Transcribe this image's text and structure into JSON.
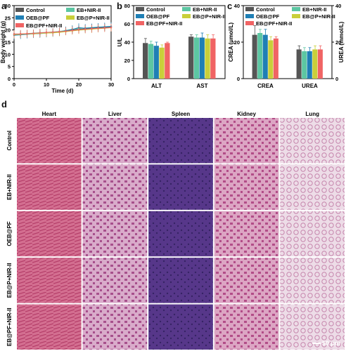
{
  "colors": {
    "Control": "#555555",
    "EB+NIR-II": "#5cc6a2",
    "OEB@PF": "#1f7fb5",
    "EB@P+NIR-II": "#c9cf3a",
    "EB@PF+NIR-II": "#f06464"
  },
  "panels": {
    "a": "a",
    "b": "b",
    "c": "c",
    "d": "d"
  },
  "chart_data": [
    {
      "id": "a",
      "type": "line",
      "xlabel": "Time (d)",
      "ylabel": "Body weight (g)",
      "xlim": [
        0,
        30
      ],
      "ylim": [
        0,
        30
      ],
      "xticks": [
        "0",
        "10",
        "20",
        "30"
      ],
      "yticks": [
        "0",
        "5",
        "10",
        "15",
        "20",
        "25",
        "30"
      ],
      "legend": "top",
      "series": [
        {
          "name": "Control",
          "x": [
            0,
            2,
            4,
            6,
            8,
            10,
            12,
            14,
            16,
            18,
            20,
            22,
            24,
            26,
            28,
            30
          ],
          "y": [
            18.0,
            18.2,
            18.4,
            18.5,
            18.7,
            18.8,
            19.0,
            19.2,
            19.6,
            20.0,
            20.3,
            20.5,
            20.7,
            20.9,
            21.0,
            21.2
          ],
          "err": 1.6
        },
        {
          "name": "EB+NIR-II",
          "x": [
            0,
            2,
            4,
            6,
            8,
            10,
            12,
            14,
            16,
            18,
            20,
            22,
            24,
            26,
            28,
            30
          ],
          "y": [
            18.4,
            18.3,
            18.5,
            18.7,
            18.9,
            19.0,
            19.2,
            19.4,
            19.8,
            20.3,
            20.6,
            20.8,
            21.0,
            21.2,
            21.3,
            21.4
          ],
          "err": 1.5
        },
        {
          "name": "OEB@PF",
          "x": [
            0,
            2,
            4,
            6,
            8,
            10,
            12,
            14,
            16,
            18,
            20,
            22,
            24,
            26,
            28,
            30
          ],
          "y": [
            17.8,
            18.0,
            18.2,
            18.4,
            18.5,
            18.7,
            18.9,
            19.2,
            19.7,
            20.2,
            21.0,
            20.7,
            20.9,
            21.1,
            21.3,
            21.5
          ],
          "err": 1.7
        },
        {
          "name": "EB@P+NIR-II",
          "x": [
            0,
            2,
            4,
            6,
            8,
            10,
            12,
            14,
            16,
            18,
            20,
            22,
            24,
            26,
            28,
            30
          ],
          "y": [
            18.1,
            18.2,
            18.4,
            18.4,
            18.6,
            18.7,
            18.8,
            19.0,
            19.3,
            19.6,
            19.9,
            20.1,
            20.3,
            20.5,
            20.7,
            20.9
          ],
          "err": 1.5
        },
        {
          "name": "EB@PF+NIR-II",
          "x": [
            0,
            2,
            4,
            6,
            8,
            10,
            12,
            14,
            16,
            18,
            20,
            22,
            24,
            26,
            28,
            30
          ],
          "y": [
            18.3,
            18.4,
            18.5,
            18.6,
            18.8,
            19.0,
            19.1,
            19.3,
            19.5,
            19.8,
            20.1,
            20.3,
            20.5,
            20.7,
            20.8,
            21.0
          ],
          "err": 1.6
        }
      ]
    },
    {
      "id": "b",
      "type": "bar",
      "ylabel": "U/L",
      "categories": [
        "ALT",
        "AST"
      ],
      "ylim": [
        0,
        80
      ],
      "yticks": [
        "0",
        "20",
        "40",
        "60",
        "80"
      ],
      "legend": "top",
      "series": [
        {
          "name": "Control",
          "values": [
            39,
            46
          ],
          "err": [
            5,
            2
          ]
        },
        {
          "name": "EB+NIR-II",
          "values": [
            38,
            45
          ],
          "err": [
            3,
            3
          ]
        },
        {
          "name": "OEB@PF",
          "values": [
            36,
            45
          ],
          "err": [
            4,
            5
          ]
        },
        {
          "name": "EB@P+NIR-II",
          "values": [
            34,
            44
          ],
          "err": [
            3,
            4
          ]
        },
        {
          "name": "EB@PF+NIR-II",
          "values": [
            39,
            44
          ],
          "err": [
            1,
            4
          ]
        }
      ]
    },
    {
      "id": "c",
      "type": "bar",
      "ylabel": "CREA (μmol/L)",
      "ylabel_right": "UREA (mmol/L)",
      "categories": [
        "CREA",
        "UREA"
      ],
      "ylim": [
        0,
        40
      ],
      "yticks": [
        "0",
        "20",
        "40"
      ],
      "yticks_right": [
        "0",
        "20",
        "40"
      ],
      "legend": "top",
      "series": [
        {
          "name": "Control",
          "values": [
            24,
            16
          ],
          "err": [
            5,
            2
          ]
        },
        {
          "name": "EB+NIR-II",
          "values": [
            25,
            15
          ],
          "err": [
            2,
            2
          ]
        },
        {
          "name": "OEB@PF",
          "values": [
            24,
            15
          ],
          "err": [
            3,
            2
          ]
        },
        {
          "name": "EB@P+NIR-II",
          "values": [
            21,
            16
          ],
          "err": [
            2,
            2
          ]
        },
        {
          "name": "EB@PF+NIR-II",
          "values": [
            22,
            16
          ],
          "err": [
            1,
            2
          ]
        }
      ]
    }
  ],
  "histology": {
    "columns": [
      "Heart",
      "Liver",
      "Spleen",
      "Kidney",
      "Lung"
    ],
    "rows": [
      "Control",
      "EB+NIR-II",
      "OEB@PF",
      "EB@P+NIR-II",
      "EB@PF+NIR-II"
    ],
    "tissue_colors": {
      "Heart": "#c24d74",
      "Liver": "#b85a95",
      "Spleen": "#4a2f7d",
      "Kidney": "#b8568f",
      "Lung": "#d6a8c4"
    },
    "scale_bar": "50 μm"
  }
}
